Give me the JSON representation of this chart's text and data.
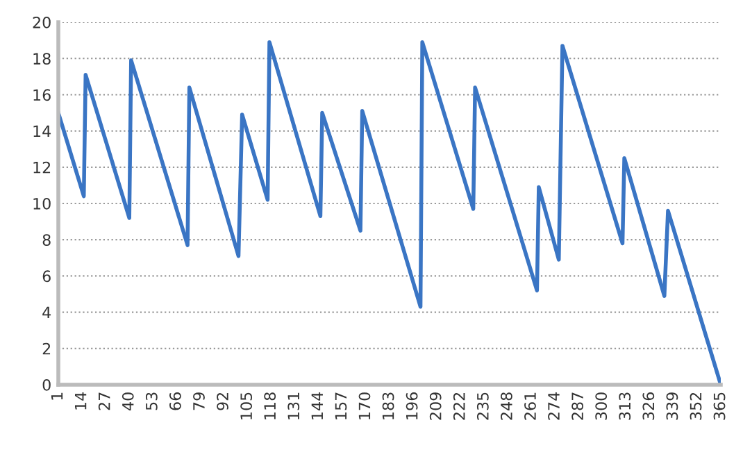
{
  "chart_data": {
    "type": "line",
    "x": [
      1,
      15,
      16,
      40,
      41,
      72,
      73,
      100,
      102,
      116,
      117,
      145,
      146,
      167,
      168,
      200,
      201,
      229,
      230,
      264,
      265,
      276,
      278,
      311,
      312,
      334,
      336,
      365
    ],
    "series": [
      {
        "color": "#3a75c4",
        "values": [
          15.0,
          10.4,
          17.1,
          9.2,
          17.9,
          7.7,
          16.4,
          7.1,
          14.9,
          10.2,
          18.9,
          9.3,
          15.0,
          8.5,
          15.1,
          4.3,
          18.9,
          9.7,
          16.4,
          5.2,
          10.9,
          6.9,
          18.7,
          7.8,
          12.5,
          4.9,
          9.6,
          0
        ]
      }
    ],
    "xlim": [
      1,
      365
    ],
    "xticks": [
      1,
      14,
      27,
      40,
      53,
      66,
      79,
      92,
      105,
      118,
      131,
      144,
      157,
      170,
      183,
      196,
      209,
      222,
      235,
      248,
      261,
      274,
      287,
      300,
      313,
      326,
      339,
      352,
      365
    ],
    "ylim": [
      0,
      20
    ],
    "yticks": [
      0,
      2,
      4,
      6,
      8,
      10,
      12,
      14,
      16,
      18,
      20
    ],
    "grid": "y",
    "marker": "none",
    "line_style": "solid",
    "legend": false
  }
}
